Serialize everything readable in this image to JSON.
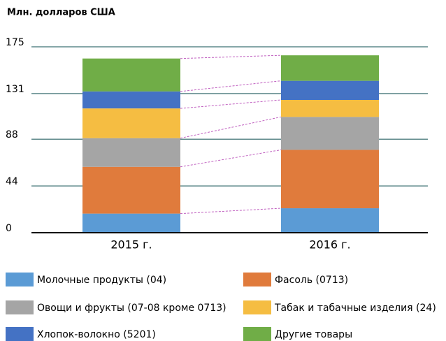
{
  "chart_data": {
    "type": "stacked_bar",
    "title": "Млн. долларов США",
    "categories": [
      "2015 г.",
      "2016 г."
    ],
    "series": [
      {
        "name": "Молочные продукты (04)",
        "color": "#5b9bd5",
        "values": [
          18,
          23
        ]
      },
      {
        "name": "Фасоль (0713)",
        "color": "#e07b3c",
        "values": [
          44,
          55
        ]
      },
      {
        "name": "Овощи и фрукты (07-08 кроме 0713)",
        "color": "#a5a5a5",
        "values": [
          27,
          31
        ]
      },
      {
        "name": "Табак и табачные изделия (24)",
        "color": "#f5bd42",
        "values": [
          28,
          16
        ]
      },
      {
        "name": "Хлопок-волокно (5201)",
        "color": "#4472c4",
        "values": [
          16,
          18
        ]
      },
      {
        "name": "Другие товары",
        "color": "#70ad47",
        "values": [
          31,
          24
        ]
      }
    ],
    "ylim": [
      0,
      175
    ],
    "yticks": [
      0,
      44,
      88,
      131,
      175
    ],
    "grid": true
  }
}
